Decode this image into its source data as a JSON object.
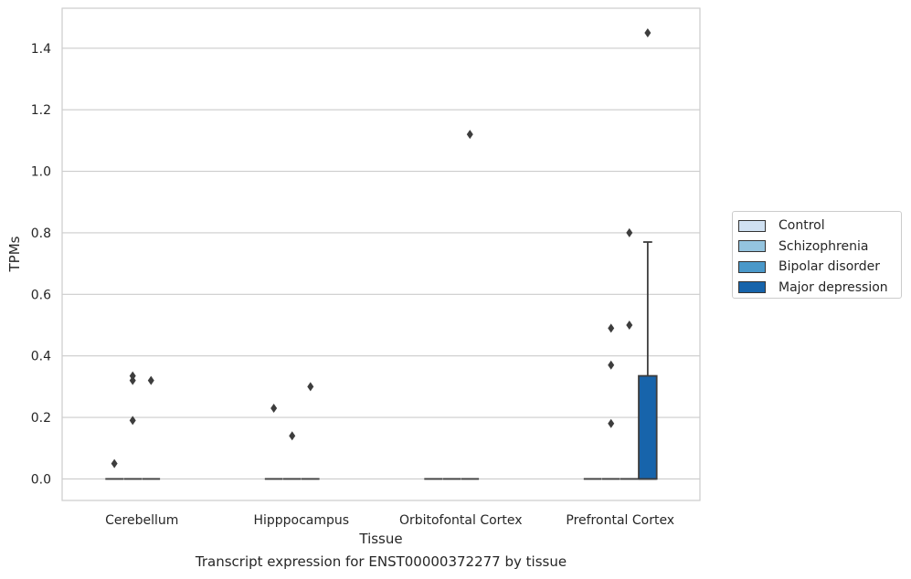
{
  "chart_data": {
    "type": "box",
    "title": "Transcript expression for ENST00000372277 by tissue",
    "xlabel": "Tissue",
    "ylabel": "TPMs",
    "ylim": [
      -0.07,
      1.53
    ],
    "yticks": [
      0.0,
      0.2,
      0.4,
      0.6,
      0.8,
      1.0,
      1.2,
      1.4
    ],
    "ytick_labels": [
      "0.0",
      "0.2",
      "0.4",
      "0.6",
      "0.8",
      "1.0",
      "1.2",
      "1.4"
    ],
    "categories": [
      "Cerebellum",
      "Hipppocampus",
      "Orbitofontal Cortex",
      "Prefrontal Cortex"
    ],
    "grid": "horizontal",
    "legend_position": "right",
    "series": [
      {
        "name": "Control",
        "color": "#d0e1f2",
        "boxes": [
          {
            "q1": 0,
            "median": 0,
            "q3": 0,
            "whisker_low": 0,
            "whisker_high": 0,
            "outliers": [
              0.05
            ]
          },
          {
            "q1": 0,
            "median": 0,
            "q3": 0,
            "whisker_low": 0,
            "whisker_high": 0,
            "outliers": [
              0.23
            ]
          },
          {
            "q1": 0,
            "median": 0,
            "q3": 0,
            "whisker_low": 0,
            "whisker_high": 0,
            "outliers": []
          },
          {
            "q1": 0,
            "median": 0,
            "q3": 0,
            "whisker_low": 0,
            "whisker_high": 0,
            "outliers": []
          }
        ]
      },
      {
        "name": "Schizophrenia",
        "color": "#94c4df",
        "boxes": [
          {
            "q1": 0,
            "median": 0,
            "q3": 0,
            "whisker_low": 0,
            "whisker_high": 0,
            "outliers": [
              0.19,
              0.32,
              0.335
            ]
          },
          {
            "q1": 0,
            "median": 0,
            "q3": 0,
            "whisker_low": 0,
            "whisker_high": 0,
            "outliers": [
              0.14
            ]
          },
          {
            "q1": 0,
            "median": 0,
            "q3": 0,
            "whisker_low": 0,
            "whisker_high": 0,
            "outliers": []
          },
          {
            "q1": 0,
            "median": 0,
            "q3": 0,
            "whisker_low": 0,
            "whisker_high": 0,
            "outliers": [
              0.18,
              0.37,
              0.49
            ]
          }
        ]
      },
      {
        "name": "Bipolar disorder",
        "color": "#4a98c9",
        "boxes": [
          {
            "q1": 0,
            "median": 0,
            "q3": 0,
            "whisker_low": 0,
            "whisker_high": 0,
            "outliers": [
              0.32
            ]
          },
          {
            "q1": 0,
            "median": 0,
            "q3": 0,
            "whisker_low": 0,
            "whisker_high": 0,
            "outliers": [
              0.3
            ]
          },
          {
            "q1": 0,
            "median": 0,
            "q3": 0,
            "whisker_low": 0,
            "whisker_high": 0,
            "outliers": [
              1.12
            ]
          },
          {
            "q1": 0,
            "median": 0,
            "q3": 0,
            "whisker_low": 0,
            "whisker_high": 0,
            "outliers": [
              0.5,
              0.8
            ]
          }
        ]
      },
      {
        "name": "Major depression",
        "color": "#1764ab",
        "boxes": [
          null,
          null,
          null,
          {
            "q1": 0,
            "median": 0,
            "q3": 0.335,
            "whisker_low": 0,
            "whisker_high": 0.77,
            "outliers": [
              1.45
            ]
          }
        ]
      }
    ]
  }
}
